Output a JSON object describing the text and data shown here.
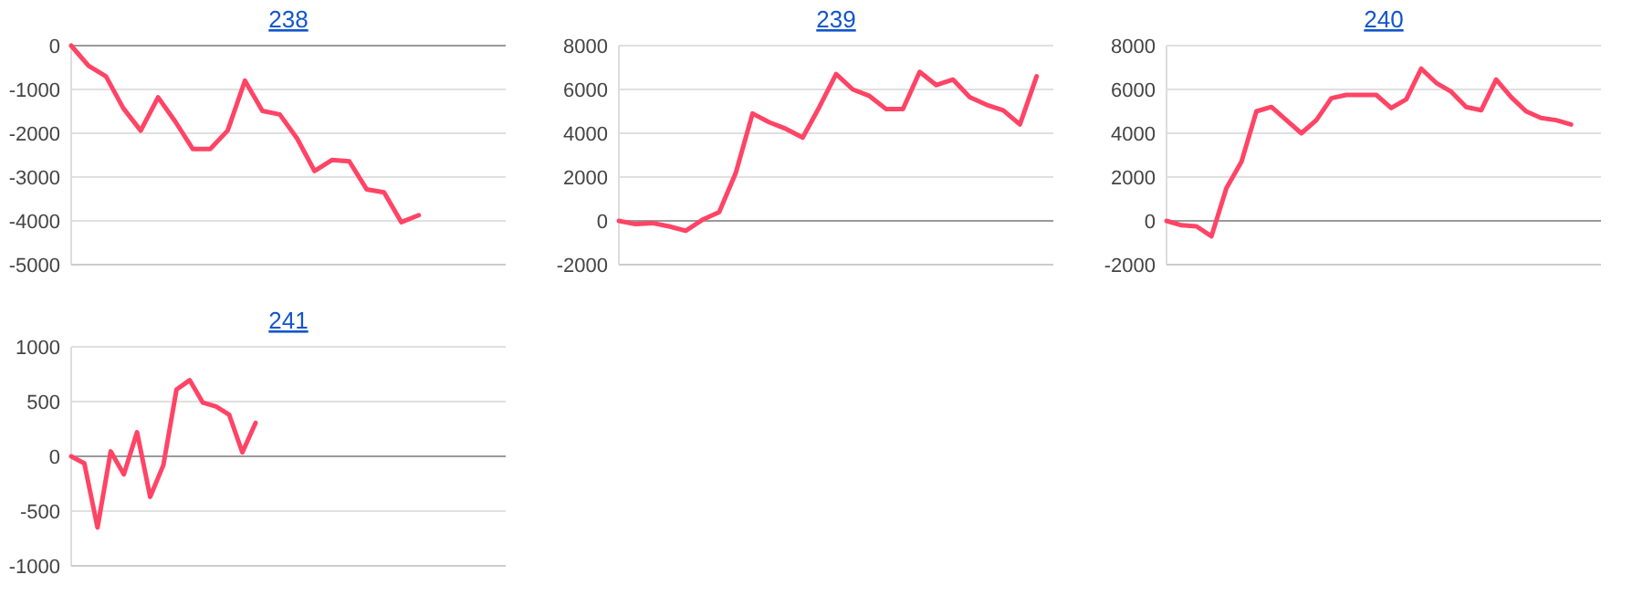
{
  "chart_data": [
    {
      "type": "line",
      "title": "238",
      "categories": [
        null,
        null,
        null,
        null,
        null,
        null,
        null,
        null,
        null,
        null,
        null,
        null,
        null,
        null,
        null,
        null,
        null,
        null,
        null,
        null,
        null,
        null,
        null,
        null,
        null,
        null
      ],
      "series": [
        {
          "color": "#ff4466",
          "values": [
            0,
            -460,
            -700,
            -1430,
            -1940,
            -1180,
            -1740,
            -2360,
            -2360,
            -1940,
            -800,
            -1490,
            -1570,
            -2120,
            -2860,
            -2610,
            -2640,
            -3280,
            -3350,
            -4030,
            -3870,
            null,
            null,
            null,
            null,
            null
          ]
        }
      ],
      "ylim": [
        -5000,
        0
      ],
      "yticks": [
        -5000,
        -4000,
        -3000,
        -2000,
        -1000,
        0
      ],
      "grid": "y",
      "tick_labels": "y",
      "line_style": "solid",
      "marker": "none"
    },
    {
      "type": "line",
      "title": "239",
      "categories": [
        null,
        null,
        null,
        null,
        null,
        null,
        null,
        null,
        null,
        null,
        null,
        null,
        null,
        null,
        null,
        null,
        null,
        null,
        null,
        null,
        null,
        null,
        null,
        null,
        null,
        null,
        null
      ],
      "series": [
        {
          "color": "#ff4466",
          "values": [
            0,
            -150,
            -100,
            -250,
            -450,
            50,
            400,
            2200,
            4900,
            4500,
            4200,
            3800,
            5200,
            6700,
            6000,
            5700,
            5100,
            5100,
            6800,
            6200,
            6450,
            5650,
            5300,
            5050,
            4400,
            6600,
            null
          ]
        }
      ],
      "ylim": [
        -2000,
        8000
      ],
      "yticks": [
        -2000,
        0,
        2000,
        4000,
        6000,
        8000
      ],
      "grid": "y",
      "tick_labels": "y",
      "line_style": "solid",
      "marker": "none"
    },
    {
      "type": "line",
      "title": "240",
      "categories": [
        null,
        null,
        null,
        null,
        null,
        null,
        null,
        null,
        null,
        null,
        null,
        null,
        null,
        null,
        null,
        null,
        null,
        null,
        null,
        null,
        null,
        null,
        null,
        null,
        null,
        null,
        null,
        null,
        null,
        null
      ],
      "series": [
        {
          "color": "#ff4466",
          "values": [
            0,
            -200,
            -250,
            -700,
            1500,
            2700,
            5000,
            5200,
            4600,
            4000,
            4600,
            5600,
            5750,
            5750,
            5750,
            5150,
            5550,
            6950,
            6300,
            5900,
            5200,
            5050,
            6450,
            5650,
            5000,
            4700,
            4600,
            4400,
            null,
            null
          ]
        }
      ],
      "ylim": [
        -2000,
        8000
      ],
      "yticks": [
        -2000,
        0,
        2000,
        4000,
        6000,
        8000
      ],
      "grid": "y",
      "tick_labels": "y",
      "line_style": "solid",
      "marker": "none"
    },
    {
      "type": "line",
      "title": "241",
      "categories": [
        null,
        null,
        null,
        null,
        null,
        null,
        null,
        null,
        null,
        null,
        null,
        null,
        null,
        null,
        null,
        null,
        null,
        null,
        null,
        null,
        null,
        null,
        null,
        null,
        null,
        null,
        null,
        null,
        null,
        null,
        null,
        null,
        null,
        null
      ],
      "series": [
        {
          "color": "#ff4466",
          "values": [
            0,
            -65,
            -650,
            45,
            -165,
            220,
            -370,
            -80,
            610,
            695,
            490,
            455,
            380,
            35,
            305,
            null,
            null,
            null,
            null,
            null,
            null,
            null,
            null,
            null,
            null,
            null,
            null,
            null,
            null,
            null,
            null,
            null,
            null,
            null
          ]
        }
      ],
      "ylim": [
        -1000,
        1000
      ],
      "yticks": [
        -1000,
        -500,
        0,
        500,
        1000
      ],
      "grid": "y",
      "tick_labels": "y",
      "line_style": "solid",
      "marker": "none"
    }
  ]
}
